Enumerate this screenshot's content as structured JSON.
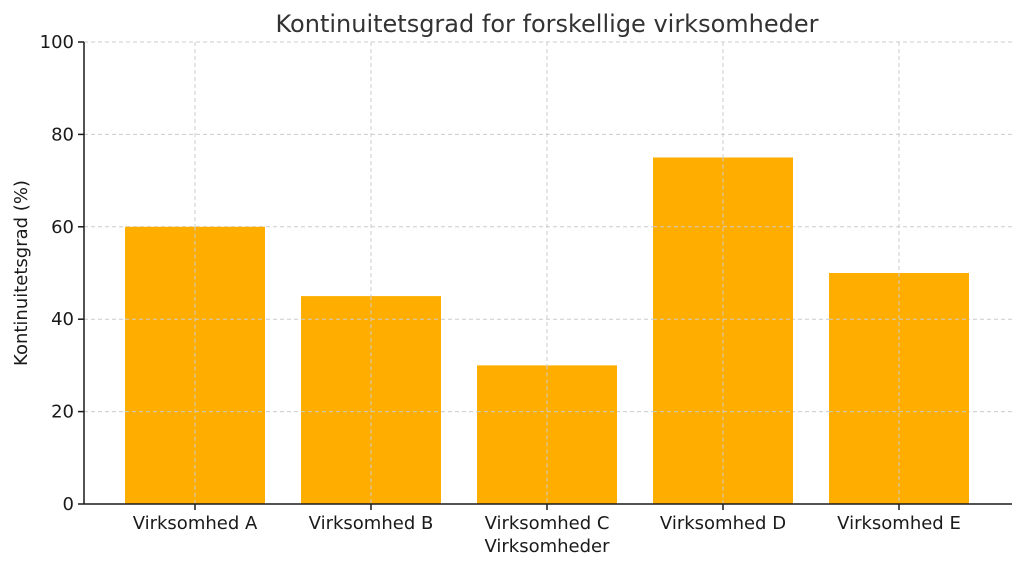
{
  "chart_data": {
    "type": "bar",
    "title": "Kontinuitetsgrad for forskellige virksomheder",
    "xlabel": "Virksomheder",
    "ylabel": "Kontinuitetsgrad (%)",
    "categories": [
      "Virksomhed A",
      "Virksomhed B",
      "Virksomhed C",
      "Virksomhed D",
      "Virksomhed E"
    ],
    "values": [
      60,
      45,
      30,
      75,
      50
    ],
    "ylim": [
      0,
      100
    ],
    "yticks": [
      0,
      20,
      40,
      60,
      80,
      100
    ],
    "grid": true,
    "bar_color": "#FFAE00"
  }
}
